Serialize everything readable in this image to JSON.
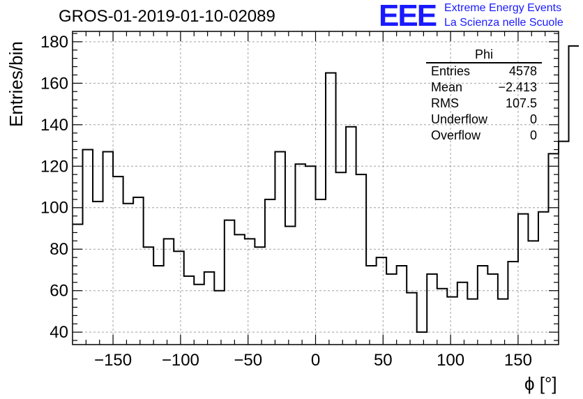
{
  "header": {
    "title": "GROS-01-2019-01-10-02089",
    "logo_mark": "EEE",
    "logo_line1": "Extreme Energy Events",
    "logo_line2": "La Scienza nelle Scuole"
  },
  "stats_box": {
    "title": "Phi",
    "rows": [
      {
        "label": "Entries",
        "value": "4578"
      },
      {
        "label": "Mean",
        "value": "−2.413"
      },
      {
        "label": "RMS",
        "value": "107.5"
      },
      {
        "label": "Underflow",
        "value": "0"
      },
      {
        "label": "Overflow",
        "value": "0"
      }
    ]
  },
  "colors": {
    "logo": "#1a1aff",
    "line": "#000000",
    "grid": "#a0a0a0"
  },
  "chart_data": {
    "type": "histogram",
    "title": "GROS-01-2019-01-10-02089",
    "xlabel": "ϕ [°]",
    "ylabel": "Entries/bin",
    "xlim": [
      -180,
      180
    ],
    "ylim": [
      34,
      185
    ],
    "x_ticks": [
      -150,
      -100,
      -50,
      0,
      50,
      100,
      150
    ],
    "y_ticks": [
      40,
      60,
      80,
      100,
      120,
      140,
      160,
      180
    ],
    "x_tick_labels": [
      "−150",
      "−100",
      "−50",
      "0",
      "50",
      "100",
      "150"
    ],
    "y_tick_labels": [
      "40",
      "60",
      "80",
      "100",
      "120",
      "140",
      "160",
      "180"
    ],
    "grid": true,
    "bin_width": 7.5,
    "bin_start": -180,
    "values": [
      92,
      128,
      103,
      127,
      115,
      102,
      105,
      81,
      72,
      85,
      79,
      67,
      63,
      69,
      60,
      94,
      87,
      85,
      81,
      104,
      127,
      91,
      121,
      120,
      104,
      165,
      117,
      139,
      116,
      72,
      76,
      68,
      72,
      59,
      40,
      68,
      61,
      57,
      64,
      56,
      72,
      68,
      56,
      74,
      97,
      84,
      98,
      126,
      132,
      178
    ]
  }
}
